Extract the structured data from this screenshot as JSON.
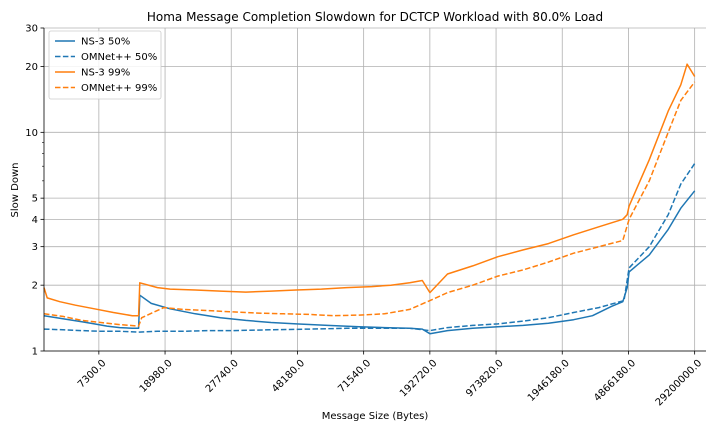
{
  "chart_data": {
    "type": "line",
    "title": "Homa Message Completion Slowdown for DCTCP Workload with 80.0% Load",
    "xlabel": "Message Size (Bytes)",
    "ylabel": "Slow Down",
    "y_scale": "log",
    "ylim": [
      1,
      30
    ],
    "y_ticks": [
      1,
      2,
      3,
      4,
      5,
      10,
      20,
      30
    ],
    "x_index_range": [
      0,
      1050
    ],
    "x_ticks": [
      {
        "index": 87,
        "label": "7300.0"
      },
      {
        "index": 192,
        "label": "18980.0"
      },
      {
        "index": 297,
        "label": "27740.0"
      },
      {
        "index": 402,
        "label": "48180.0"
      },
      {
        "index": 507,
        "label": "71540.0"
      },
      {
        "index": 612,
        "label": "192720.0"
      },
      {
        "index": 717,
        "label": "973820.0"
      },
      {
        "index": 822,
        "label": "1946180.0"
      },
      {
        "index": 927,
        "label": "4866180.0"
      },
      {
        "index": 1032,
        "label": "29200000.0"
      }
    ],
    "grid": true,
    "legend_position": "top-left",
    "series": [
      {
        "name": "NS-3 50%",
        "color": "#1f77b4",
        "dash": "solid",
        "points": [
          [
            0,
            1.45
          ],
          [
            20,
            1.42
          ],
          [
            40,
            1.39
          ],
          [
            60,
            1.36
          ],
          [
            80,
            1.33
          ],
          [
            100,
            1.3
          ],
          [
            120,
            1.28
          ],
          [
            140,
            1.27
          ],
          [
            150,
            1.27
          ],
          [
            152,
            1.8
          ],
          [
            170,
            1.65
          ],
          [
            200,
            1.56
          ],
          [
            240,
            1.48
          ],
          [
            280,
            1.42
          ],
          [
            320,
            1.38
          ],
          [
            360,
            1.35
          ],
          [
            400,
            1.33
          ],
          [
            450,
            1.31
          ],
          [
            500,
            1.29
          ],
          [
            540,
            1.28
          ],
          [
            580,
            1.27
          ],
          [
            600,
            1.26
          ],
          [
            612,
            1.2
          ],
          [
            640,
            1.24
          ],
          [
            680,
            1.27
          ],
          [
            720,
            1.29
          ],
          [
            760,
            1.31
          ],
          [
            800,
            1.34
          ],
          [
            840,
            1.39
          ],
          [
            870,
            1.45
          ],
          [
            900,
            1.6
          ],
          [
            918,
            1.68
          ],
          [
            925,
            1.95
          ],
          [
            928,
            2.3
          ],
          [
            960,
            2.75
          ],
          [
            990,
            3.6
          ],
          [
            1010,
            4.5
          ],
          [
            1032,
            5.4
          ]
        ]
      },
      {
        "name": "OMNet++ 50%",
        "color": "#1f77b4",
        "dash": "dashed",
        "points": [
          [
            0,
            1.26
          ],
          [
            30,
            1.25
          ],
          [
            60,
            1.24
          ],
          [
            90,
            1.23
          ],
          [
            120,
            1.23
          ],
          [
            150,
            1.22
          ],
          [
            180,
            1.23
          ],
          [
            220,
            1.23
          ],
          [
            260,
            1.24
          ],
          [
            300,
            1.24
          ],
          [
            360,
            1.25
          ],
          [
            420,
            1.26
          ],
          [
            480,
            1.27
          ],
          [
            540,
            1.27
          ],
          [
            580,
            1.27
          ],
          [
            612,
            1.24
          ],
          [
            640,
            1.28
          ],
          [
            680,
            1.31
          ],
          [
            720,
            1.33
          ],
          [
            760,
            1.37
          ],
          [
            800,
            1.42
          ],
          [
            840,
            1.5
          ],
          [
            880,
            1.58
          ],
          [
            920,
            1.7
          ],
          [
            928,
            2.4
          ],
          [
            960,
            3.0
          ],
          [
            990,
            4.2
          ],
          [
            1010,
            5.8
          ],
          [
            1032,
            7.2
          ]
        ]
      },
      {
        "name": "NS-3 99%",
        "color": "#ff7f0e",
        "dash": "solid",
        "points": [
          [
            0,
            1.95
          ],
          [
            5,
            1.75
          ],
          [
            25,
            1.68
          ],
          [
            50,
            1.62
          ],
          [
            80,
            1.56
          ],
          [
            110,
            1.5
          ],
          [
            140,
            1.45
          ],
          [
            150,
            1.45
          ],
          [
            152,
            2.05
          ],
          [
            180,
            1.95
          ],
          [
            200,
            1.92
          ],
          [
            240,
            1.9
          ],
          [
            280,
            1.88
          ],
          [
            320,
            1.86
          ],
          [
            360,
            1.88
          ],
          [
            400,
            1.9
          ],
          [
            440,
            1.92
          ],
          [
            480,
            1.95
          ],
          [
            520,
            1.97
          ],
          [
            550,
            2.0
          ],
          [
            580,
            2.05
          ],
          [
            600,
            2.1
          ],
          [
            612,
            1.85
          ],
          [
            640,
            2.25
          ],
          [
            680,
            2.45
          ],
          [
            720,
            2.7
          ],
          [
            760,
            2.9
          ],
          [
            800,
            3.1
          ],
          [
            840,
            3.4
          ],
          [
            880,
            3.7
          ],
          [
            918,
            4.0
          ],
          [
            925,
            4.2
          ],
          [
            928,
            4.6
          ],
          [
            960,
            7.5
          ],
          [
            990,
            12.5
          ],
          [
            1010,
            16.5
          ],
          [
            1020,
            20.5
          ],
          [
            1032,
            18.0
          ]
        ]
      },
      {
        "name": "OMNet++ 99%",
        "color": "#ff7f0e",
        "dash": "dashed",
        "points": [
          [
            0,
            1.48
          ],
          [
            30,
            1.44
          ],
          [
            60,
            1.38
          ],
          [
            90,
            1.35
          ],
          [
            120,
            1.32
          ],
          [
            150,
            1.3
          ],
          [
            155,
            1.42
          ],
          [
            190,
            1.58
          ],
          [
            220,
            1.55
          ],
          [
            260,
            1.53
          ],
          [
            300,
            1.51
          ],
          [
            340,
            1.49
          ],
          [
            380,
            1.48
          ],
          [
            420,
            1.47
          ],
          [
            460,
            1.45
          ],
          [
            500,
            1.46
          ],
          [
            540,
            1.48
          ],
          [
            580,
            1.55
          ],
          [
            612,
            1.7
          ],
          [
            640,
            1.85
          ],
          [
            680,
            2.0
          ],
          [
            720,
            2.2
          ],
          [
            760,
            2.35
          ],
          [
            800,
            2.55
          ],
          [
            840,
            2.8
          ],
          [
            880,
            3.0
          ],
          [
            918,
            3.2
          ],
          [
            928,
            4.0
          ],
          [
            960,
            6.0
          ],
          [
            990,
            10.0
          ],
          [
            1010,
            14.0
          ],
          [
            1032,
            17.0
          ]
        ]
      }
    ]
  }
}
